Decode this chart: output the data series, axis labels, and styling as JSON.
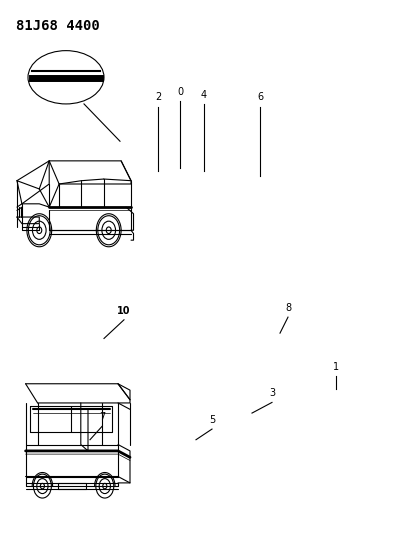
{
  "title": "81J68 4400",
  "title_fontsize": 10,
  "bg_color": "#ffffff",
  "line_color": "#000000",
  "fig_width": 4.0,
  "fig_height": 5.33,
  "dpi": 100
}
